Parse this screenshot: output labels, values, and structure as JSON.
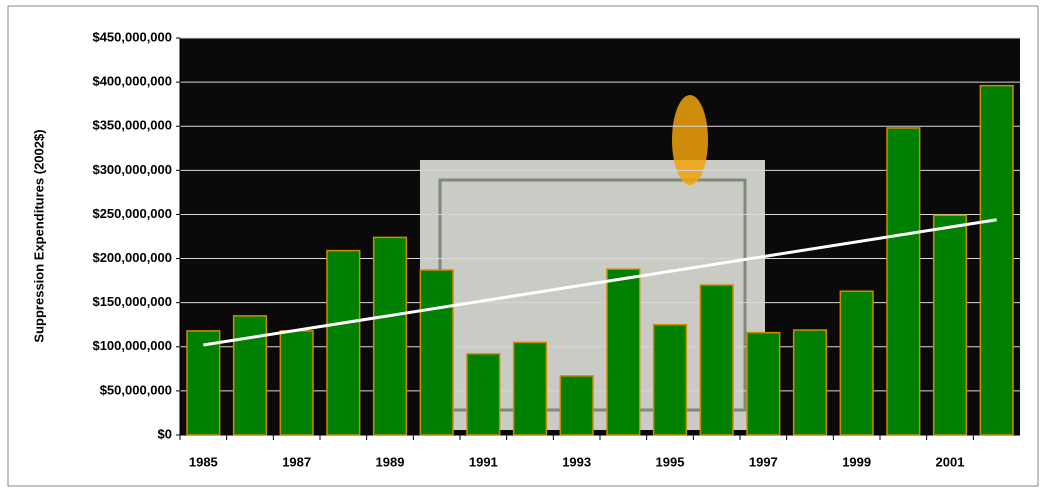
{
  "chart_data": {
    "type": "bar",
    "y_axis_label": "Suppression Expenditures (2002$)",
    "categories": [
      "1985",
      null,
      "1987",
      null,
      "1989",
      null,
      "1991",
      null,
      "1993",
      null,
      "1995",
      null,
      "1997",
      null,
      "1999",
      null,
      "2001",
      null
    ],
    "values": [
      118000000,
      135000000,
      118000000,
      209000000,
      224000000,
      187000000,
      92000000,
      105000000,
      67000000,
      188000000,
      125000000,
      170000000,
      116000000,
      119000000,
      163000000,
      348000000,
      249000000,
      396000000
    ],
    "color": "#008000",
    "edge_color": "#d08a00",
    "trendline": {
      "values": [
        102000000,
        244000000
      ],
      "color": "#ffffff"
    },
    "ylim": [
      0,
      450000000
    ],
    "yticks": [
      {
        "value": 0,
        "label": "$0"
      },
      {
        "value": 50000000,
        "label": "$50,000,000"
      },
      {
        "value": 100000000,
        "label": "$100,000,000"
      },
      {
        "value": 150000000,
        "label": "$150,000,000"
      },
      {
        "value": 200000000,
        "label": "$200,000,000"
      },
      {
        "value": 250000000,
        "label": "$250,000,000"
      },
      {
        "value": 300000000,
        "label": "$300,000,000"
      },
      {
        "value": 350000000,
        "label": "$350,000,000"
      },
      {
        "value": 400000000,
        "label": "$400,000,000"
      },
      {
        "value": 450000000,
        "label": "$450,000,000"
      }
    ],
    "grid": true
  }
}
